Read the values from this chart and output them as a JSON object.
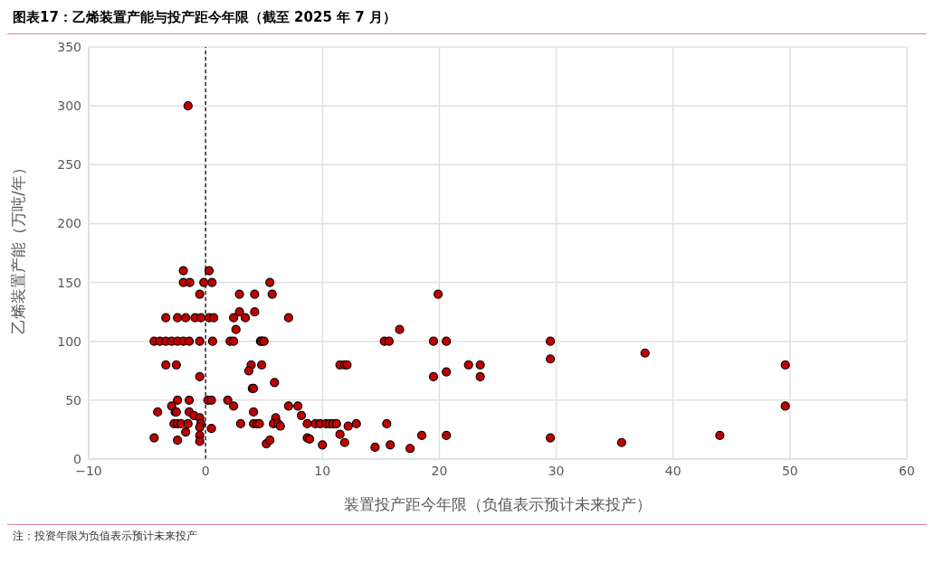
{
  "chart_data": {
    "type": "scatter",
    "title": "图表17：乙烯装置产能与投产距今年限（截至 2025 年 7 月）",
    "xlabel": "装置投产距今年限（负值表示预计未来投产）",
    "ylabel": "乙烯装置产能（万吨/年）",
    "annotations": [
      "注：投资年限为负值表示预计未来投产"
    ],
    "xlim": [
      -10,
      60
    ],
    "xticks": [
      -10,
      0,
      10,
      20,
      30,
      40,
      50,
      60
    ],
    "ylim": [
      0,
      350
    ],
    "yticks": [
      0,
      50,
      100,
      150,
      200,
      250,
      300,
      350
    ],
    "grid": true,
    "marker": "circle",
    "ref_lines": [
      {
        "axis": "x",
        "value": 0,
        "color": "#000000",
        "line_style": "dashed"
      }
    ],
    "series": [
      {
        "color": "#c00000",
        "x": [
          -1.5,
          -1.9,
          0.3,
          -1.9,
          -1.35,
          -0.15,
          0.55,
          -0.5,
          -3.4,
          -2.4,
          -1.7,
          -0.9,
          -0.4,
          0.3,
          0.7,
          -4.4,
          -3.9,
          -3.4,
          -2.9,
          -2.4,
          -1.9,
          -1.4,
          -0.5,
          0.6,
          -3.4,
          -2.5,
          -0.5,
          -2.4,
          -1.4,
          0.2,
          0.5,
          -2.9,
          -4.1,
          -2.6,
          -2.5,
          -1.4,
          -1.0,
          -0.5,
          -2.7,
          -2.4,
          -2.1,
          -1.5,
          -0.4,
          -0.5,
          0.5,
          -1.7,
          -0.5,
          -4.4,
          -2.4,
          -0.5,
          5.5,
          2.9,
          4.2,
          5.7,
          2.9,
          4.2,
          2.4,
          3.4,
          7.1,
          2.6,
          2.1,
          2.4,
          4.7,
          4.8,
          5.0,
          15.3,
          15.7,
          3.9,
          4.8,
          11.5,
          11.9,
          12.1,
          3.7,
          5.9,
          4.0,
          4.1,
          1.9,
          2.4,
          4.1,
          6.0,
          3.0,
          4.1,
          4.4,
          4.6,
          5.8,
          6.2,
          6.4,
          7.1,
          7.9,
          8.2,
          8.7,
          9.4,
          9.8,
          10.3,
          10.6,
          10.9,
          11.2,
          12.9,
          12.2,
          11.5,
          8.7,
          8.9,
          11.9,
          5.2,
          5.5,
          10.0,
          14.5,
          15.8,
          15.5,
          19.9,
          16.6,
          19.5,
          20.6,
          29.5,
          29.5,
          22.5,
          23.5,
          20.6,
          19.5,
          23.5,
          37.6,
          18.5,
          20.6,
          17.5,
          29.5,
          35.6,
          49.6,
          49.6,
          44.0
        ],
        "values": [
          300,
          160,
          160,
          150,
          150,
          150,
          150,
          140,
          120,
          120,
          120,
          120,
          120,
          120,
          120,
          100,
          100,
          100,
          100,
          100,
          100,
          100,
          100,
          100,
          80,
          80,
          70,
          50,
          50,
          50,
          50,
          45,
          40,
          40,
          40,
          40,
          37,
          35,
          30,
          30,
          30,
          30,
          30,
          27,
          26,
          23,
          20,
          18,
          16,
          15,
          150,
          140,
          140,
          140,
          125,
          125,
          120,
          120,
          120,
          110,
          100,
          100,
          100,
          100,
          100,
          100,
          100,
          80,
          80,
          80,
          80,
          80,
          75,
          65,
          60,
          60,
          50,
          45,
          40,
          35,
          30,
          30,
          30,
          30,
          30,
          30,
          28,
          45,
          45,
          37,
          30,
          30,
          30,
          30,
          30,
          30,
          30,
          30,
          28,
          21,
          18,
          17,
          14,
          13,
          16,
          12,
          10,
          12,
          30,
          140,
          110,
          100,
          100,
          100,
          85,
          80,
          80,
          74,
          70,
          70,
          90,
          20,
          20,
          9,
          18,
          14,
          80,
          45,
          20
        ]
      }
    ]
  }
}
